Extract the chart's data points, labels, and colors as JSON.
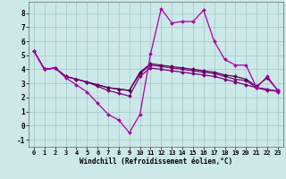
{
  "xlabel": "Windchill (Refroidissement éolien,°C)",
  "x": [
    0,
    1,
    2,
    3,
    4,
    5,
    6,
    7,
    8,
    9,
    10,
    11,
    12,
    13,
    14,
    15,
    16,
    17,
    18,
    19,
    20,
    21,
    22,
    23
  ],
  "line1": [
    5.3,
    4.0,
    4.1,
    3.4,
    2.9,
    2.4,
    1.6,
    0.8,
    0.4,
    -0.5,
    0.8,
    5.1,
    8.3,
    7.3,
    7.4,
    7.4,
    8.2,
    6.0,
    4.7,
    4.3,
    4.3,
    2.7,
    3.5,
    2.5
  ],
  "line2": [
    5.3,
    4.0,
    4.1,
    3.5,
    3.3,
    3.1,
    2.8,
    2.5,
    2.3,
    2.1,
    3.5,
    4.1,
    4.0,
    3.9,
    3.8,
    3.7,
    3.6,
    3.5,
    3.3,
    3.1,
    2.9,
    2.7,
    2.5,
    2.5
  ],
  "line3": [
    5.3,
    4.0,
    4.1,
    3.5,
    3.3,
    3.1,
    2.9,
    2.7,
    2.6,
    2.5,
    3.8,
    4.4,
    4.3,
    4.2,
    4.1,
    4.0,
    3.9,
    3.8,
    3.6,
    3.5,
    3.3,
    2.8,
    3.4,
    2.5
  ],
  "line4": [
    5.3,
    4.0,
    4.1,
    3.5,
    3.3,
    3.1,
    2.9,
    2.7,
    2.6,
    2.5,
    3.7,
    4.3,
    4.2,
    4.1,
    4.0,
    3.9,
    3.8,
    3.7,
    3.5,
    3.3,
    3.2,
    2.7,
    2.6,
    2.4
  ],
  "color1": "#aa00aa",
  "color2": "#770077",
  "color3": "#550055",
  "color4": "#880088",
  "bg_color": "#cce8e8",
  "grid_color": "#aacccc",
  "ylim": [
    -1.5,
    8.8
  ],
  "yticks": [
    -1,
    0,
    1,
    2,
    3,
    4,
    5,
    6,
    7,
    8
  ],
  "xticks": [
    0,
    1,
    2,
    3,
    4,
    5,
    6,
    7,
    8,
    9,
    10,
    11,
    12,
    13,
    14,
    15,
    16,
    17,
    18,
    19,
    20,
    21,
    22,
    23
  ],
  "marker": "D",
  "markersize": 2.0,
  "linewidth": 0.9,
  "tick_fontsize": 5.0,
  "xlabel_fontsize": 5.5
}
